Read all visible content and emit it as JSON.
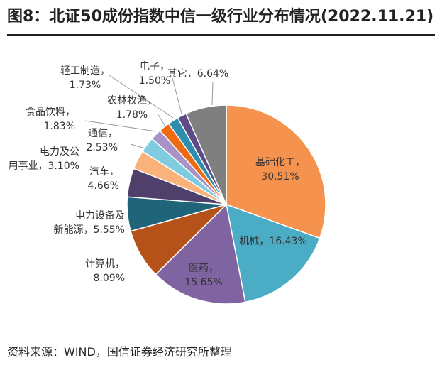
{
  "header": {
    "title": "图8：北证50成份指数中信一级行业分布情况(2022.11.21)"
  },
  "footer": {
    "source": "资料来源：WIND，国信证券经济研究所整理"
  },
  "chart_data": {
    "type": "pie",
    "title": "图8：北证50成份指数中信一级行业分布情况(2022.11.21)",
    "start_angle_deg": 0,
    "direction": "clockwise",
    "slices": [
      {
        "name": "基础化工",
        "value": 30.51,
        "label": "30.51%",
        "color": "#F5924E"
      },
      {
        "name": "机械",
        "value": 16.43,
        "label": "16.43%",
        "color": "#4BACC6"
      },
      {
        "name": "医药",
        "value": 15.65,
        "label": "15.65%",
        "color": "#8064A2"
      },
      {
        "name": "计算机",
        "value": 8.09,
        "label": "8.09%",
        "color": "#B5521A"
      },
      {
        "name": "电力设备及新能源",
        "value": 5.55,
        "label": "5.55%",
        "color": "#1F6479"
      },
      {
        "name": "汽车",
        "value": 4.66,
        "label": "4.66%",
        "color": "#4F3F6B"
      },
      {
        "name": "电力及公用事业",
        "value": 3.1,
        "label": "3.10%",
        "color": "#F9B27A"
      },
      {
        "name": "通信",
        "value": 2.53,
        "label": "2.53%",
        "color": "#7FCBDF"
      },
      {
        "name": "食品饮料",
        "value": 1.83,
        "label": "1.83%",
        "color": "#A993C6"
      },
      {
        "name": "农林牧渔",
        "value": 1.78,
        "label": "1.78%",
        "color": "#EF6B12"
      },
      {
        "name": "轻工制造",
        "value": 1.73,
        "label": "1.73%",
        "color": "#2D8EAE"
      },
      {
        "name": "电子",
        "value": 1.5,
        "label": "1.50%",
        "color": "#5E4A86"
      },
      {
        "name": "其它",
        "value": 6.64,
        "label": "6.64%",
        "color": "#7F7F7F"
      }
    ],
    "legend": "none"
  }
}
